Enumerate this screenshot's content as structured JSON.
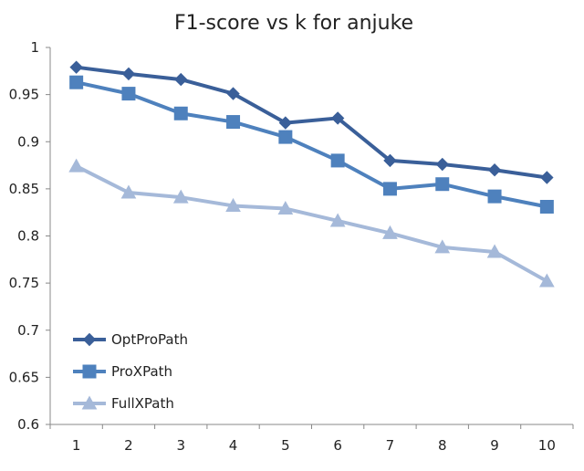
{
  "chart_data": {
    "type": "line",
    "title": "F1-score vs k for anjuke",
    "xlabel": "",
    "ylabel": "",
    "categories": [
      "1",
      "2",
      "3",
      "4",
      "5",
      "6",
      "7",
      "8",
      "9",
      "10"
    ],
    "ylim": [
      0.6,
      1.0
    ],
    "yticks": [
      "0.6",
      "0.65",
      "0.7",
      "0.75",
      "0.8",
      "0.85",
      "0.9",
      "0.95",
      "1"
    ],
    "grid": false,
    "legend_position": "bottom-left",
    "series": [
      {
        "name": "OptProPath",
        "marker": "diamond",
        "color": "#3a5f99",
        "values": [
          0.979,
          0.972,
          0.966,
          0.951,
          0.92,
          0.925,
          0.88,
          0.876,
          0.87,
          0.862
        ]
      },
      {
        "name": "ProXPath",
        "marker": "square",
        "color": "#4e81bd",
        "values": [
          0.963,
          0.951,
          0.93,
          0.921,
          0.905,
          0.88,
          0.85,
          0.855,
          0.842,
          0.831
        ]
      },
      {
        "name": "FullXPath",
        "marker": "triangle",
        "color": "#a5b9d9",
        "values": [
          0.874,
          0.846,
          0.841,
          0.832,
          0.829,
          0.816,
          0.803,
          0.788,
          0.783,
          0.752
        ]
      }
    ]
  }
}
